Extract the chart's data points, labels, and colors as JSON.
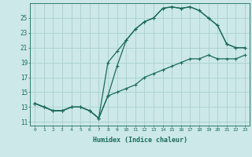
{
  "bg_color": "#cce8e8",
  "grid_color": "#aacfcf",
  "line_color": "#1a6b5a",
  "xlabel": "Humidex (Indice chaleur)",
  "xlim": [
    -0.5,
    23.5
  ],
  "ylim": [
    10.5,
    27.0
  ],
  "xtick_labels": [
    "0",
    "1",
    "2",
    "3",
    "4",
    "5",
    "6",
    "7",
    "8",
    "9",
    "10",
    "11",
    "12",
    "13",
    "14",
    "15",
    "16",
    "17",
    "18",
    "19",
    "20",
    "21",
    "22",
    "23"
  ],
  "ytick_values": [
    11,
    13,
    15,
    17,
    19,
    21,
    23,
    25
  ],
  "curve1_x": [
    0,
    1,
    2,
    3,
    4,
    5,
    6,
    7,
    8,
    9,
    10,
    11,
    12,
    13,
    14,
    15,
    16,
    17,
    18,
    19,
    20,
    21,
    22,
    23
  ],
  "curve1_y": [
    13.5,
    13.0,
    12.5,
    12.5,
    13.0,
    13.0,
    12.5,
    11.5,
    14.5,
    18.5,
    22.0,
    23.5,
    24.5,
    25.0,
    26.3,
    26.5,
    26.3,
    26.5,
    26.0,
    25.0,
    24.0,
    21.5,
    21.0,
    21.0
  ],
  "curve2_x": [
    0,
    1,
    2,
    3,
    4,
    5,
    6,
    7,
    8,
    9,
    10,
    11,
    12,
    13,
    14,
    15,
    16,
    17,
    18,
    19,
    20,
    21,
    22,
    23
  ],
  "curve2_y": [
    13.5,
    13.0,
    12.5,
    12.5,
    13.0,
    13.0,
    12.5,
    11.5,
    19.0,
    20.5,
    22.0,
    23.5,
    24.5,
    25.0,
    26.3,
    26.5,
    26.3,
    26.5,
    26.0,
    25.0,
    24.0,
    21.5,
    21.0,
    21.0
  ],
  "curve3_x": [
    0,
    1,
    2,
    3,
    4,
    5,
    6,
    7,
    8,
    9,
    10,
    11,
    12,
    13,
    14,
    15,
    16,
    17,
    18,
    19,
    20,
    21,
    22,
    23
  ],
  "curve3_y": [
    13.5,
    13.0,
    12.5,
    12.5,
    13.0,
    13.0,
    12.5,
    11.5,
    14.5,
    15.0,
    15.5,
    16.0,
    17.0,
    17.5,
    18.0,
    18.5,
    19.0,
    19.5,
    19.5,
    20.0,
    19.5,
    19.5,
    19.5,
    20.0
  ]
}
